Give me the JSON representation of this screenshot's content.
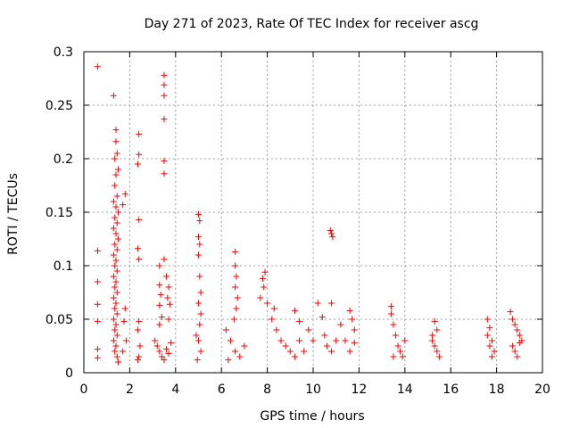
{
  "chart_data": {
    "type": "scatter",
    "title": "Day 271 of 2023, Rate Of TEC Index for receiver ascg",
    "xlabel": "GPS time / hours",
    "ylabel": "ROTI / TECUs",
    "xlim": [
      0,
      20
    ],
    "ylim": [
      0,
      0.3
    ],
    "x_ticks": [
      0,
      2,
      4,
      6,
      8,
      10,
      12,
      14,
      16,
      18,
      20
    ],
    "y_ticks": [
      0,
      0.05,
      0.1,
      0.15,
      0.2,
      0.25,
      0.3
    ],
    "y_tick_labels": [
      "0",
      "0.05",
      "0.1",
      "0.15",
      "0.2",
      "0.25",
      "0.3"
    ],
    "grid": true,
    "marker": "+",
    "marker_color": "#ff0000",
    "series": [
      {
        "name": "ROTI",
        "points": [
          [
            0.6,
            0.286
          ],
          [
            0.6,
            0.114
          ],
          [
            0.6,
            0.085
          ],
          [
            0.6,
            0.064
          ],
          [
            0.6,
            0.048
          ],
          [
            0.6,
            0.022
          ],
          [
            0.6,
            0.014
          ],
          [
            1.3,
            0.259
          ],
          [
            1.4,
            0.227
          ],
          [
            1.4,
            0.216
          ],
          [
            1.45,
            0.205
          ],
          [
            1.35,
            0.2
          ],
          [
            1.5,
            0.19
          ],
          [
            1.4,
            0.185
          ],
          [
            1.35,
            0.175
          ],
          [
            1.45,
            0.165
          ],
          [
            1.3,
            0.16
          ],
          [
            1.4,
            0.155
          ],
          [
            1.5,
            0.15
          ],
          [
            1.35,
            0.145
          ],
          [
            1.45,
            0.14
          ],
          [
            1.3,
            0.135
          ],
          [
            1.4,
            0.13
          ],
          [
            1.5,
            0.125
          ],
          [
            1.35,
            0.12
          ],
          [
            1.45,
            0.115
          ],
          [
            1.3,
            0.11
          ],
          [
            1.4,
            0.105
          ],
          [
            1.35,
            0.1
          ],
          [
            1.45,
            0.095
          ],
          [
            1.3,
            0.09
          ],
          [
            1.4,
            0.085
          ],
          [
            1.35,
            0.08
          ],
          [
            1.45,
            0.075
          ],
          [
            1.3,
            0.07
          ],
          [
            1.4,
            0.065
          ],
          [
            1.35,
            0.06
          ],
          [
            1.45,
            0.055
          ],
          [
            1.3,
            0.05
          ],
          [
            1.4,
            0.045
          ],
          [
            1.35,
            0.04
          ],
          [
            1.45,
            0.035
          ],
          [
            1.3,
            0.03
          ],
          [
            1.4,
            0.025
          ],
          [
            1.35,
            0.02
          ],
          [
            1.45,
            0.015
          ],
          [
            1.5,
            0.01
          ],
          [
            1.8,
            0.167
          ],
          [
            1.7,
            0.157
          ],
          [
            1.8,
            0.06
          ],
          [
            1.75,
            0.048
          ],
          [
            1.85,
            0.03
          ],
          [
            1.7,
            0.02
          ],
          [
            2.4,
            0.223
          ],
          [
            2.4,
            0.204
          ],
          [
            2.35,
            0.195
          ],
          [
            2.4,
            0.143
          ],
          [
            2.35,
            0.116
          ],
          [
            2.4,
            0.106
          ],
          [
            2.4,
            0.048
          ],
          [
            2.35,
            0.04
          ],
          [
            2.45,
            0.025
          ],
          [
            2.4,
            0.015
          ],
          [
            2.35,
            0.012
          ],
          [
            3.3,
            0.1
          ],
          [
            3.3,
            0.082
          ],
          [
            3.35,
            0.073
          ],
          [
            3.3,
            0.063
          ],
          [
            3.4,
            0.052
          ],
          [
            3.3,
            0.045
          ],
          [
            3.5,
            0.278
          ],
          [
            3.5,
            0.269
          ],
          [
            3.5,
            0.259
          ],
          [
            3.5,
            0.237
          ],
          [
            3.5,
            0.198
          ],
          [
            3.5,
            0.186
          ],
          [
            3.5,
            0.106
          ],
          [
            3.6,
            0.09
          ],
          [
            3.7,
            0.08
          ],
          [
            3.65,
            0.07
          ],
          [
            3.75,
            0.064
          ],
          [
            3.7,
            0.05
          ],
          [
            3.1,
            0.03
          ],
          [
            3.2,
            0.025
          ],
          [
            3.3,
            0.02
          ],
          [
            3.4,
            0.015
          ],
          [
            3.5,
            0.012
          ],
          [
            3.6,
            0.022
          ],
          [
            3.7,
            0.018
          ],
          [
            3.8,
            0.028
          ],
          [
            5.0,
            0.148
          ],
          [
            5.05,
            0.142
          ],
          [
            5.0,
            0.127
          ],
          [
            5.05,
            0.12
          ],
          [
            5.0,
            0.11
          ],
          [
            5.05,
            0.09
          ],
          [
            5.1,
            0.075
          ],
          [
            5.0,
            0.065
          ],
          [
            5.1,
            0.055
          ],
          [
            5.05,
            0.045
          ],
          [
            4.9,
            0.035
          ],
          [
            5.0,
            0.03
          ],
          [
            5.1,
            0.02
          ],
          [
            4.95,
            0.012
          ],
          [
            6.6,
            0.113
          ],
          [
            6.6,
            0.1
          ],
          [
            6.65,
            0.09
          ],
          [
            6.6,
            0.08
          ],
          [
            6.7,
            0.07
          ],
          [
            6.65,
            0.06
          ],
          [
            6.55,
            0.05
          ],
          [
            6.2,
            0.04
          ],
          [
            6.4,
            0.03
          ],
          [
            6.6,
            0.02
          ],
          [
            6.8,
            0.015
          ],
          [
            7.0,
            0.025
          ],
          [
            6.3,
            0.012
          ],
          [
            7.9,
            0.094
          ],
          [
            7.8,
            0.088
          ],
          [
            7.85,
            0.08
          ],
          [
            7.7,
            0.07
          ],
          [
            8.0,
            0.065
          ],
          [
            8.3,
            0.06
          ],
          [
            8.2,
            0.05
          ],
          [
            8.4,
            0.04
          ],
          [
            8.6,
            0.03
          ],
          [
            8.8,
            0.025
          ],
          [
            9.0,
            0.02
          ],
          [
            9.2,
            0.015
          ],
          [
            9.4,
            0.03
          ],
          [
            9.6,
            0.02
          ],
          [
            9.2,
            0.058
          ],
          [
            9.4,
            0.048
          ],
          [
            9.8,
            0.04
          ],
          [
            10.0,
            0.03
          ],
          [
            10.2,
            0.065
          ],
          [
            10.4,
            0.052
          ],
          [
            10.5,
            0.035
          ],
          [
            10.6,
            0.025
          ],
          [
            10.8,
            0.02
          ],
          [
            11.0,
            0.03
          ],
          [
            11.2,
            0.045
          ],
          [
            11.4,
            0.03
          ],
          [
            11.6,
            0.02
          ],
          [
            11.8,
            0.028
          ],
          [
            11.6,
            0.058
          ],
          [
            11.7,
            0.05
          ],
          [
            11.8,
            0.04
          ],
          [
            10.75,
            0.133
          ],
          [
            10.8,
            0.13
          ],
          [
            10.85,
            0.127
          ],
          [
            10.8,
            0.065
          ],
          [
            13.4,
            0.062
          ],
          [
            13.4,
            0.055
          ],
          [
            13.5,
            0.045
          ],
          [
            13.6,
            0.035
          ],
          [
            13.7,
            0.025
          ],
          [
            13.8,
            0.02
          ],
          [
            13.9,
            0.015
          ],
          [
            14.0,
            0.03
          ],
          [
            13.5,
            0.015
          ],
          [
            15.3,
            0.048
          ],
          [
            15.4,
            0.04
          ],
          [
            15.2,
            0.035
          ],
          [
            15.3,
            0.025
          ],
          [
            15.4,
            0.02
          ],
          [
            15.5,
            0.015
          ],
          [
            15.2,
            0.03
          ],
          [
            17.6,
            0.05
          ],
          [
            17.7,
            0.042
          ],
          [
            17.6,
            0.035
          ],
          [
            17.8,
            0.03
          ],
          [
            17.7,
            0.025
          ],
          [
            17.9,
            0.02
          ],
          [
            17.8,
            0.015
          ],
          [
            18.6,
            0.057
          ],
          [
            18.7,
            0.05
          ],
          [
            18.8,
            0.045
          ],
          [
            18.9,
            0.04
          ],
          [
            19.0,
            0.035
          ],
          [
            19.1,
            0.03
          ],
          [
            18.7,
            0.025
          ],
          [
            18.8,
            0.02
          ],
          [
            18.9,
            0.015
          ],
          [
            19.0,
            0.028
          ]
        ]
      }
    ]
  }
}
